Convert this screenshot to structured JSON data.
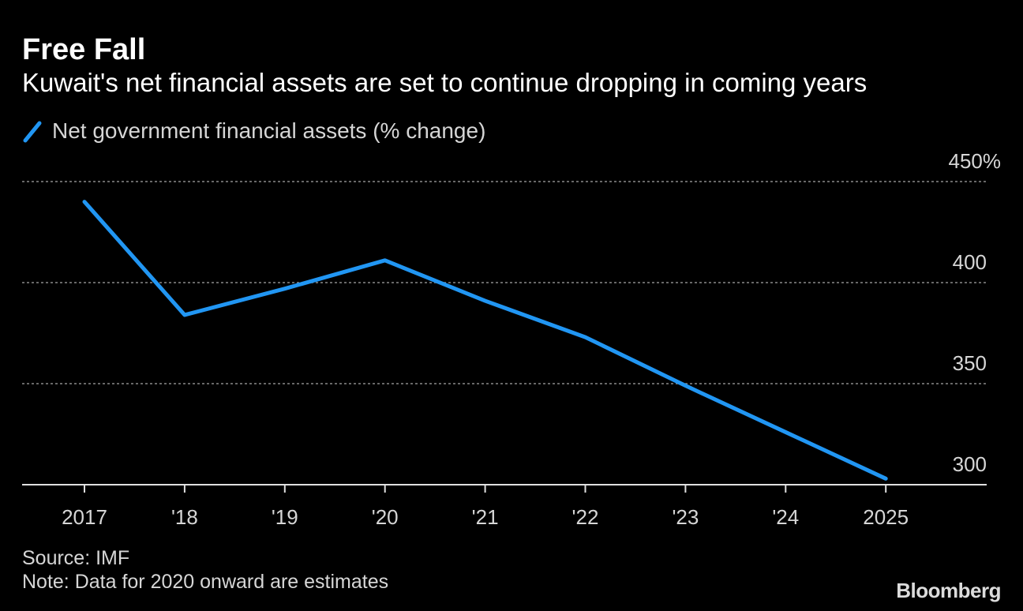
{
  "chart_data": {
    "type": "line",
    "title": "Free Fall",
    "subtitle": "Kuwait's net financial assets are set to continue dropping in coming years",
    "categories": [
      "2017",
      "'18",
      "'19",
      "'20",
      "'21",
      "'22",
      "'23",
      "'24",
      "2025"
    ],
    "series": [
      {
        "name": "Net government financial assets (% change)",
        "values": [
          440,
          384,
          397,
          411,
          391,
          373,
          349,
          326,
          303
        ],
        "color": "#2196f3"
      }
    ],
    "ylim": [
      295,
      462
    ],
    "yticks": [
      300,
      350,
      400,
      450
    ],
    "ytick_labels": [
      "300",
      "350",
      "400",
      "450%"
    ],
    "grid": true,
    "legend_position": "top-left"
  },
  "footer": {
    "source": "Source: IMF",
    "note": "Note: Data for 2020 onward are estimates",
    "logo": "Bloomberg"
  }
}
